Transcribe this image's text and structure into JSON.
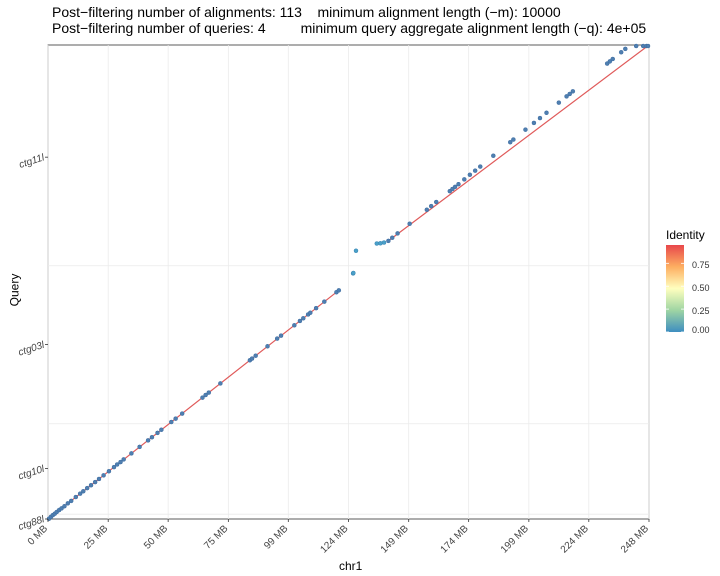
{
  "titles": {
    "line1": "Post−filtering number of alignments: 113    minimum alignment length (−m): 10000",
    "line2": "Post−filtering number of queries: 4         minimum query aggregate alignment length (−q): 4e+05"
  },
  "chart_data": {
    "type": "scatter",
    "xlabel": "chr1",
    "ylabel": "Query",
    "x_ticks": [
      "0 MB",
      "25 MB",
      "50 MB",
      "75 MB",
      "99 MB",
      "124 MB",
      "149 MB",
      "174 MB",
      "199 MB",
      "224 MB",
      "248 MB"
    ],
    "x_tick_values": [
      0,
      24.9,
      49.7,
      74.6,
      99.4,
      124.3,
      149.2,
      174.0,
      198.9,
      223.7,
      248.6
    ],
    "xlim": [
      0,
      248.6
    ],
    "y_ticks": [
      "ctg88l",
      "ctg10l",
      "ctg03l",
      "ctg11l"
    ],
    "y_tick_values": [
      0,
      20.9,
      72.3,
      150.0
    ],
    "y_boundaries": [
      2.0,
      39.5,
      105.0
    ],
    "ylim": [
      0,
      196.5
    ],
    "legend": {
      "title": "Identity",
      "labels": [
        "0.75",
        "0.50",
        "0.25",
        "0.00"
      ],
      "label_values": [
        0.75,
        0.5,
        0.25,
        0.0
      ],
      "range": [
        0,
        0.95
      ]
    },
    "colors": {
      "line": "#e05a5a",
      "point": "#4f7fb0",
      "point_outline": "#3b6aa0",
      "outlier": "#4aa0c8",
      "grid": "#ebebeb"
    },
    "diagonal_segments": [
      {
        "x": [
          0,
          120.3
        ],
        "y": [
          0,
          94.8
        ]
      },
      {
        "x": [
          140.8,
          248.6
        ],
        "y": [
          115.3,
          196.5
        ]
      }
    ],
    "points": [
      [
        0.4,
        0.1
      ],
      [
        1.2,
        0.9
      ],
      [
        2.0,
        1.6
      ],
      [
        2.8,
        2.2
      ],
      [
        3.6,
        2.9
      ],
      [
        4.6,
        3.7
      ],
      [
        5.6,
        4.4
      ],
      [
        6.8,
        5.3
      ],
      [
        8.2,
        6.5
      ],
      [
        9.6,
        7.5
      ],
      [
        11.5,
        9.1
      ],
      [
        13.3,
        10.5
      ],
      [
        14.6,
        11.5
      ],
      [
        16.2,
        12.8
      ],
      [
        17.8,
        14.0
      ],
      [
        19.5,
        15.3
      ],
      [
        21.1,
        16.6
      ],
      [
        23.0,
        18.1
      ],
      [
        25.2,
        19.8
      ],
      [
        27.3,
        21.5
      ],
      [
        28.6,
        22.6
      ],
      [
        30.0,
        23.6
      ],
      [
        31.3,
        24.7
      ],
      [
        34.5,
        27.2
      ],
      [
        37.9,
        29.9
      ],
      [
        41.4,
        32.6
      ],
      [
        43.0,
        33.9
      ],
      [
        45.3,
        35.7
      ],
      [
        46.9,
        37.0
      ],
      [
        51.0,
        40.2
      ],
      [
        52.8,
        41.6
      ],
      [
        55.5,
        43.7
      ],
      [
        63.9,
        50.3
      ],
      [
        65.2,
        51.4
      ],
      [
        66.5,
        52.4
      ],
      [
        71.3,
        56.2
      ],
      [
        83.5,
        65.8
      ],
      [
        84.4,
        66.5
      ],
      [
        85.9,
        67.7
      ],
      [
        90.8,
        71.6
      ],
      [
        94.8,
        74.8
      ],
      [
        96.4,
        76.0
      ],
      [
        101.9,
        80.3
      ],
      [
        104.2,
        82.1
      ],
      [
        105.6,
        83.2
      ],
      [
        107.6,
        84.8
      ],
      [
        108.5,
        85.5
      ],
      [
        110.9,
        87.4
      ],
      [
        114.3,
        90.1
      ],
      [
        119.3,
        94.0
      ],
      [
        120.3,
        94.8
      ],
      [
        140.8,
        115.3
      ],
      [
        142.4,
        116.6
      ],
      [
        144.6,
        118.4
      ],
      [
        149.6,
        122.4
      ],
      [
        156.7,
        128.2
      ],
      [
        158.5,
        129.7
      ],
      [
        160.6,
        131.4
      ],
      [
        166.2,
        135.9
      ],
      [
        167.3,
        136.8
      ],
      [
        168.4,
        137.7
      ],
      [
        169.8,
        138.8
      ],
      [
        172.2,
        140.8
      ],
      [
        174.5,
        142.7
      ],
      [
        176.7,
        144.4
      ],
      [
        178.8,
        146.1
      ],
      [
        184.2,
        150.6
      ],
      [
        191.2,
        156.2
      ],
      [
        192.5,
        157.3
      ],
      [
        197.5,
        161.4
      ],
      [
        201.0,
        164.2
      ],
      [
        203.5,
        166.2
      ],
      [
        206.2,
        168.4
      ],
      [
        211.3,
        172.6
      ],
      [
        214.5,
        175.2
      ],
      [
        215.8,
        176.2
      ],
      [
        217.1,
        177.3
      ],
      [
        231.3,
        188.8
      ],
      [
        232.4,
        189.7
      ],
      [
        233.6,
        190.7
      ],
      [
        237.1,
        193.5
      ],
      [
        238.8,
        194.9
      ],
      [
        243.3,
        198.6
      ],
      [
        246.2,
        200.9
      ],
      [
        247.6,
        202.1
      ],
      [
        248.2,
        202.6
      ]
    ],
    "outlier_points": [
      [
        126.2,
        101.8
      ],
      [
        127.4,
        111.2
      ],
      [
        126.3,
        102.0
      ],
      [
        136.0,
        114.2
      ],
      [
        137.5,
        114.3
      ],
      [
        139.0,
        114.6
      ]
    ]
  }
}
